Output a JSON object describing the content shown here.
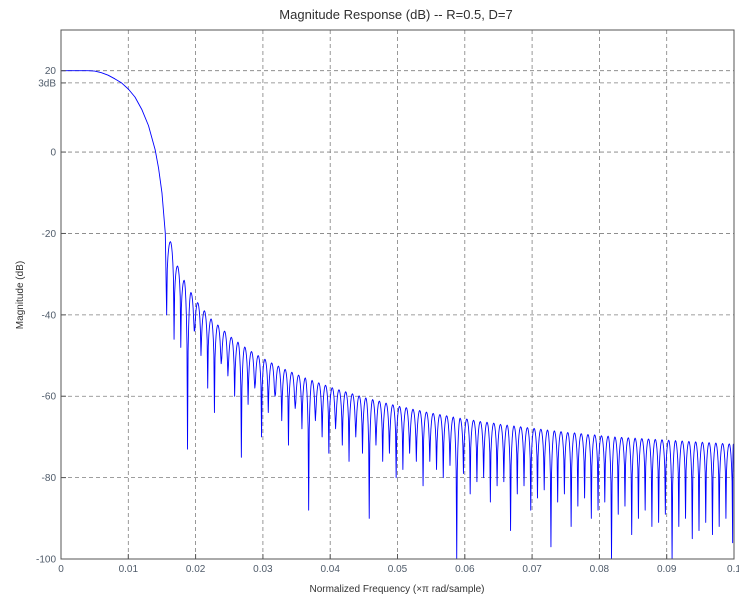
{
  "chart_data": {
    "type": "line",
    "title": "Magnitude Response (dB) -- R=0.5, D=7",
    "xlabel": "Normalized Frequency (×π rad/sample)",
    "ylabel": "Magnitude (dB)",
    "xlim": [
      0,
      0.1
    ],
    "ylim": [
      -100,
      30
    ],
    "grid": true,
    "x_ticks": [
      {
        "value": 0,
        "label": "0"
      },
      {
        "value": 0.01,
        "label": "0.01"
      },
      {
        "value": 0.02,
        "label": "0.02"
      },
      {
        "value": 0.03,
        "label": "0.03"
      },
      {
        "value": 0.04,
        "label": "0.04"
      },
      {
        "value": 0.05,
        "label": "0.05"
      },
      {
        "value": 0.06,
        "label": "0.06"
      },
      {
        "value": 0.07,
        "label": "0.07"
      },
      {
        "value": 0.08,
        "label": "0.08"
      },
      {
        "value": 0.09,
        "label": "0.09"
      },
      {
        "value": 0.1,
        "label": "0.1"
      }
    ],
    "y_ticks": [
      {
        "value": 20,
        "label": "20"
      },
      {
        "value": 17,
        "label": "3dB"
      },
      {
        "value": 0,
        "label": "0"
      },
      {
        "value": -20,
        "label": "-20"
      },
      {
        "value": -40,
        "label": "-40"
      },
      {
        "value": -60,
        "label": "-60"
      },
      {
        "value": -80,
        "label": "-80"
      },
      {
        "value": -100,
        "label": "-100"
      }
    ],
    "series": [
      {
        "color": "#0000ff",
        "mainlobe": {
          "x": [
            0,
            0.004,
            0.005,
            0.006,
            0.007,
            0.008,
            0.009,
            0.01,
            0.011,
            0.012,
            0.013,
            0.014,
            0.0145,
            0.015,
            0.0155,
            0.0157
          ],
          "y": [
            20,
            20,
            19.9,
            19.5,
            18.9,
            18,
            17,
            15.5,
            13.5,
            10.5,
            6.5,
            0.5,
            -4,
            -10,
            -20,
            -40
          ]
        },
        "sidelobe_nulls_x": [
          0.0157,
          0.0168,
          0.0178,
          0.0188,
          0.0198,
          0.0208,
          0.0218,
          0.0228,
          0.0238,
          0.0248,
          0.0258,
          0.0268,
          0.0278,
          0.0288,
          0.0298,
          0.0308,
          0.0318,
          0.0328,
          0.0338,
          0.0348,
          0.0358,
          0.0368,
          0.0378,
          0.0388,
          0.0398,
          0.0408,
          0.0418,
          0.0428,
          0.0438,
          0.0448,
          0.0458,
          0.0468,
          0.0478,
          0.0488,
          0.0498,
          0.0508,
          0.0518,
          0.0528,
          0.0538,
          0.0548,
          0.0558,
          0.0568,
          0.0578,
          0.0588,
          0.0598,
          0.0608,
          0.0618,
          0.0628,
          0.0638,
          0.0648,
          0.0658,
          0.0668,
          0.0678,
          0.0688,
          0.0698,
          0.0708,
          0.0718,
          0.0728,
          0.0738,
          0.0748,
          0.0758,
          0.0768,
          0.0778,
          0.0788,
          0.0798,
          0.0808,
          0.0818,
          0.0828,
          0.0838,
          0.0848,
          0.0858,
          0.0868,
          0.0878,
          0.0888,
          0.0898,
          0.0908,
          0.0918,
          0.0928,
          0.0938,
          0.0948,
          0.0958,
          0.0968,
          0.0978,
          0.0988,
          0.0998,
          0.1
        ],
        "sidelobe_null_y": [
          -40,
          -46,
          -48,
          -73,
          -44,
          -50,
          -58,
          -64,
          -52,
          -55,
          -60,
          -75,
          -62,
          -58,
          -70,
          -64,
          -60,
          -66,
          -72,
          -63,
          -68,
          -88,
          -66,
          -70,
          -74,
          -68,
          -72,
          -76,
          -70,
          -74,
          -90,
          -72,
          -76,
          -74,
          -80,
          -78,
          -74,
          -76,
          -82,
          -76,
          -78,
          -80,
          -77,
          -100,
          -79,
          -84,
          -81,
          -80,
          -86,
          -82,
          -81,
          -93,
          -84,
          -82,
          -88,
          -85,
          -83,
          -97,
          -86,
          -84,
          -92,
          -87,
          -85,
          -90,
          -88,
          -86,
          -100,
          -89,
          -87,
          -94,
          -90,
          -88,
          -92,
          -91,
          -89,
          -100,
          -92,
          -90,
          -95,
          -93,
          -91,
          -94,
          -92,
          -90,
          -96,
          -72
        ],
        "sidelobe_peaks_y": [
          -22,
          -28,
          -31.5,
          -34.5,
          -37,
          -39,
          -41,
          -42.5,
          -44,
          -45.5,
          -46.7,
          -47.9,
          -49,
          -50,
          -50.9,
          -51.8,
          -52.6,
          -53.4,
          -54.1,
          -54.8,
          -55.5,
          -56.1,
          -56.7,
          -57.3,
          -57.9,
          -58.4,
          -58.9,
          -59.4,
          -59.9,
          -60.4,
          -60.8,
          -61.2,
          -61.7,
          -62.1,
          -62.5,
          -62.8,
          -63.2,
          -63.5,
          -63.9,
          -64.2,
          -64.5,
          -64.8,
          -65.1,
          -65.4,
          -65.6,
          -65.9,
          -66.2,
          -66.4,
          -66.6,
          -66.9,
          -67.1,
          -67.3,
          -67.5,
          -67.7,
          -67.9,
          -68.1,
          -68.3,
          -68.5,
          -68.7,
          -68.9,
          -69,
          -69.2,
          -69.4,
          -69.5,
          -69.7,
          -69.8,
          -70,
          -70.1,
          -70.2,
          -70.3,
          -70.4,
          -70.5,
          -70.6,
          -70.7,
          -70.8,
          -70.9,
          -71,
          -71.1,
          -71.2,
          -71.3,
          -71.4,
          -71.5,
          -71.6,
          -71.7,
          -71.8
        ]
      }
    ]
  }
}
